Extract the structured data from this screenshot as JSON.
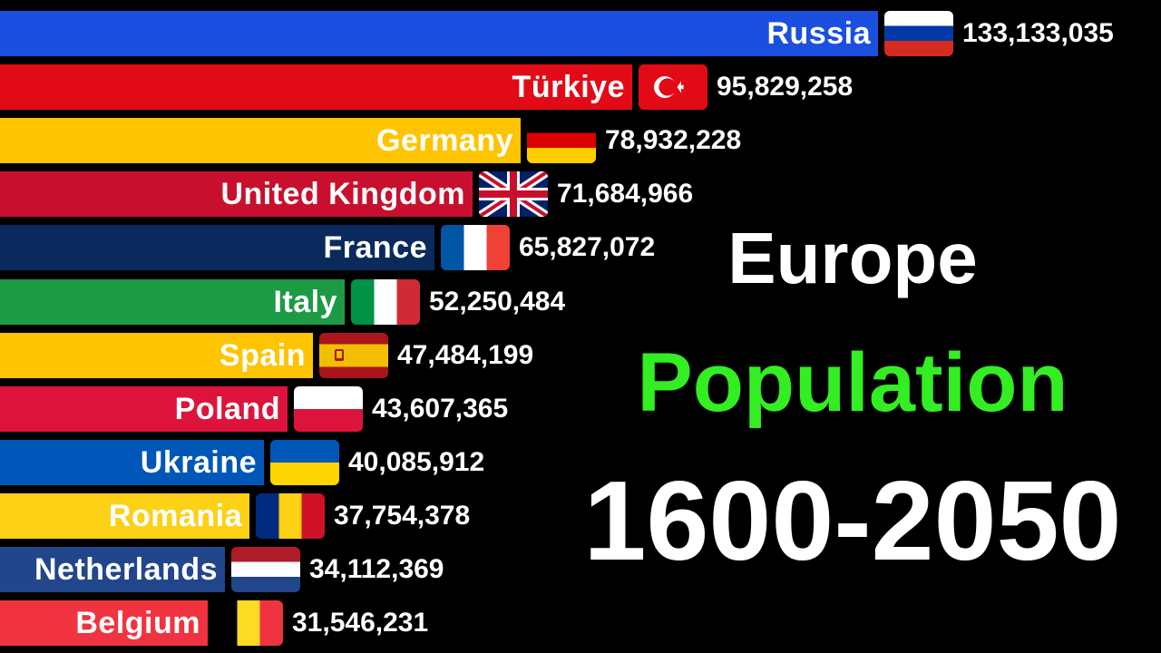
{
  "chart_data": {
    "type": "bar",
    "orientation": "horizontal",
    "title_lines": [
      "Europe",
      "Population",
      "1600-2050"
    ],
    "categories": [
      "Russia",
      "Türkiye",
      "Germany",
      "United Kingdom",
      "France",
      "Italy",
      "Spain",
      "Poland",
      "Ukraine",
      "Romania",
      "Netherlands",
      "Belgium"
    ],
    "values": [
      133133035,
      95829258,
      78932228,
      71684966,
      65827072,
      52250484,
      47484199,
      43607365,
      40085912,
      37754378,
      34112369,
      31546231
    ],
    "value_labels": [
      "133,133,035",
      "95,829,258",
      "78,932,228",
      "71,684,966",
      "65,827,072",
      "52,250,484",
      "47,484,199",
      "43,607,365",
      "40,085,912",
      "37,754,378",
      "34,112,369",
      "31,546,231"
    ],
    "bar_colors": [
      "#1a4fe0",
      "#e30a17",
      "#ffc400",
      "#c8102e",
      "#0a2a5e",
      "#1c9a44",
      "#ffc400",
      "#dc143c",
      "#0057b7",
      "#fcd116",
      "#21468b",
      "#ef3340"
    ],
    "flags": [
      "russia-flag",
      "turkiye-flag",
      "germany-flag",
      "united-kingdom-flag",
      "france-flag",
      "italy-flag",
      "spain-flag",
      "poland-flag",
      "ukraine-flag",
      "romania-flag",
      "netherlands-flag",
      "belgium-flag"
    ],
    "legend": "none",
    "grid": false
  },
  "colors": {
    "background": "#000000",
    "title_primary": "#ffffff",
    "title_accent": "#33ee22"
  }
}
